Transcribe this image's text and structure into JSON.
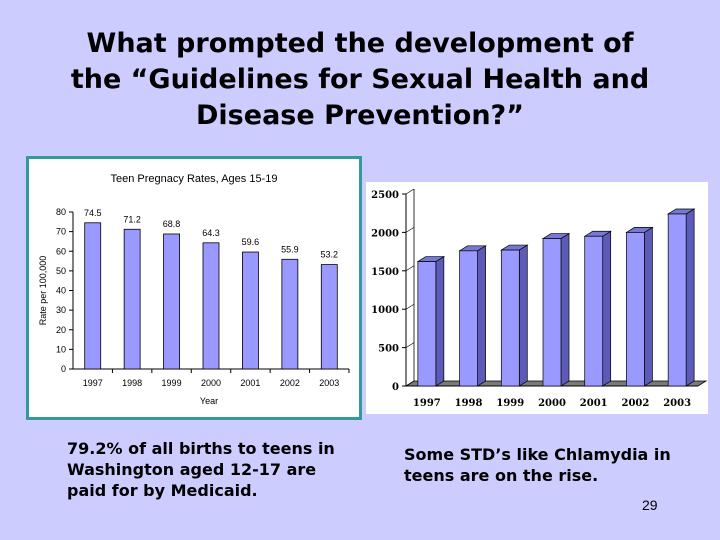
{
  "slide": {
    "title_lines": [
      "What prompted the development of",
      "the “Guidelines for Sexual Health and",
      "Disease Prevention?”"
    ],
    "caption_left": "79.2% of all births to teens in Washington aged 12-17 are paid for by Medicaid.",
    "caption_right": "Some STD’s like Chlamydia in teens are on the rise.",
    "page_number": "29"
  },
  "colors": {
    "background": "#ccccff",
    "bar_fill": "#9999ff",
    "border": "#339999"
  },
  "chart_data": [
    {
      "type": "bar",
      "title": "Teen Pregnacy Rates, Ages 15-19",
      "xlabel": "Year",
      "ylabel": "Rate per 100,000",
      "categories": [
        "1997",
        "1998",
        "1999",
        "2000",
        "2001",
        "2002",
        "2003"
      ],
      "values": [
        74.5,
        71.2,
        68.8,
        64.3,
        59.6,
        55.9,
        53.2
      ],
      "data_labels": [
        "74.5",
        "71.2",
        "68.8",
        "64.3",
        "59.6",
        "55.9",
        "53.2"
      ],
      "ylim": [
        0,
        80
      ],
      "yticks": [
        0,
        10,
        20,
        30,
        40,
        50,
        60,
        70,
        80
      ],
      "grid": false,
      "legend": "none"
    },
    {
      "type": "bar",
      "title": "",
      "xlabel": "",
      "ylabel": "",
      "style": "3d",
      "categories": [
        "1997",
        "1998",
        "1999",
        "2000",
        "2001",
        "2002",
        "2003"
      ],
      "values": [
        1620,
        1760,
        1770,
        1920,
        1950,
        2000,
        2240
      ],
      "ylim": [
        0,
        2500
      ],
      "yticks": [
        0,
        500,
        1000,
        1500,
        2000,
        2500
      ],
      "grid": false,
      "legend": "none"
    }
  ]
}
